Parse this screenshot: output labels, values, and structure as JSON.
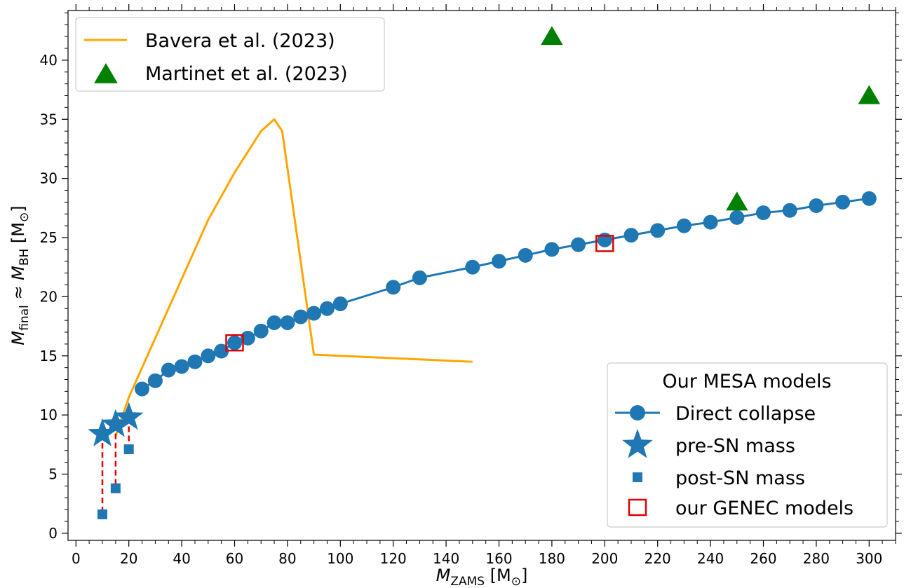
{
  "chart_data": {
    "type": "line",
    "xlabel": {
      "main": "M",
      "sub": "ZAMS",
      "unit": " [M",
      "unit_sub": "⊙",
      "unit_end": "]"
    },
    "ylabel": {
      "a_main": "M",
      "a_sub": "final",
      "approx": " ≈ ",
      "b_main": "M",
      "b_sub": "BH",
      "unit": " [M",
      "unit_sub": "⊙",
      "unit_end": "]"
    },
    "xlim": [
      -3,
      310
    ],
    "ylim": [
      -0.6,
      44.2
    ],
    "xticks": [
      0,
      20,
      40,
      60,
      80,
      100,
      120,
      140,
      160,
      180,
      200,
      220,
      240,
      260,
      280,
      300
    ],
    "yticks": [
      0,
      5,
      10,
      15,
      20,
      25,
      30,
      35,
      40
    ],
    "grid": false,
    "series": [
      {
        "name": "Bavera et al. (2023)",
        "kind": "line",
        "color": "#FFA500",
        "x": [
          15,
          20,
          30,
          40,
          50,
          60,
          70,
          75,
          78,
          90,
          150
        ],
        "y": [
          8.2,
          11.5,
          16.5,
          21.5,
          26.5,
          30.5,
          34,
          35,
          34,
          15.1,
          14.5
        ]
      },
      {
        "name": "Martinet et al. (2023)",
        "kind": "triangle",
        "color": "#008000",
        "x": [
          180,
          250,
          300
        ],
        "y": [
          42,
          28,
          37
        ]
      },
      {
        "name": "Direct collapse",
        "kind": "line-circle",
        "color": "#1F77B4",
        "x": [
          25,
          30,
          35,
          40,
          45,
          50,
          55,
          60,
          65,
          70,
          75,
          80,
          85,
          90,
          95,
          100,
          120,
          130,
          150,
          160,
          170,
          180,
          190,
          200,
          210,
          220,
          230,
          240,
          250,
          260,
          270,
          280,
          290,
          300
        ],
        "y": [
          12.2,
          12.9,
          13.8,
          14.1,
          14.5,
          15.0,
          15.4,
          16.1,
          16.5,
          17.1,
          17.8,
          17.8,
          18.3,
          18.6,
          19.0,
          19.4,
          20.8,
          21.6,
          22.5,
          23.0,
          23.5,
          24.0,
          24.4,
          24.8,
          25.2,
          25.6,
          26.0,
          26.3,
          26.7,
          27.1,
          27.3,
          27.7,
          28.0,
          28.3
        ]
      },
      {
        "name": "pre-SN mass",
        "kind": "star",
        "color": "#1F77B4",
        "x": [
          10,
          15,
          20
        ],
        "y": [
          8.4,
          9.2,
          9.8
        ]
      },
      {
        "name": "post-SN mass",
        "kind": "square",
        "color": "#1F77B4",
        "x": [
          10,
          15,
          20
        ],
        "y": [
          1.6,
          3.8,
          7.1
        ]
      },
      {
        "name": "our GENEC models",
        "kind": "open-square",
        "color": "#E00000",
        "x": [
          60,
          200
        ],
        "y": [
          16.1,
          24.5
        ]
      }
    ],
    "legend_upper": {
      "placement": "top-left",
      "entries": [
        "Bavera et al. (2023)",
        "Martinet et al. (2023)"
      ]
    },
    "legend_lower": {
      "placement": "bottom-right",
      "title": "Our MESA models",
      "entries": [
        "Direct collapse",
        "pre-SN mass",
        "post-SN mass",
        "our GENEC models"
      ]
    },
    "sn_drop_color": "#E00000"
  }
}
